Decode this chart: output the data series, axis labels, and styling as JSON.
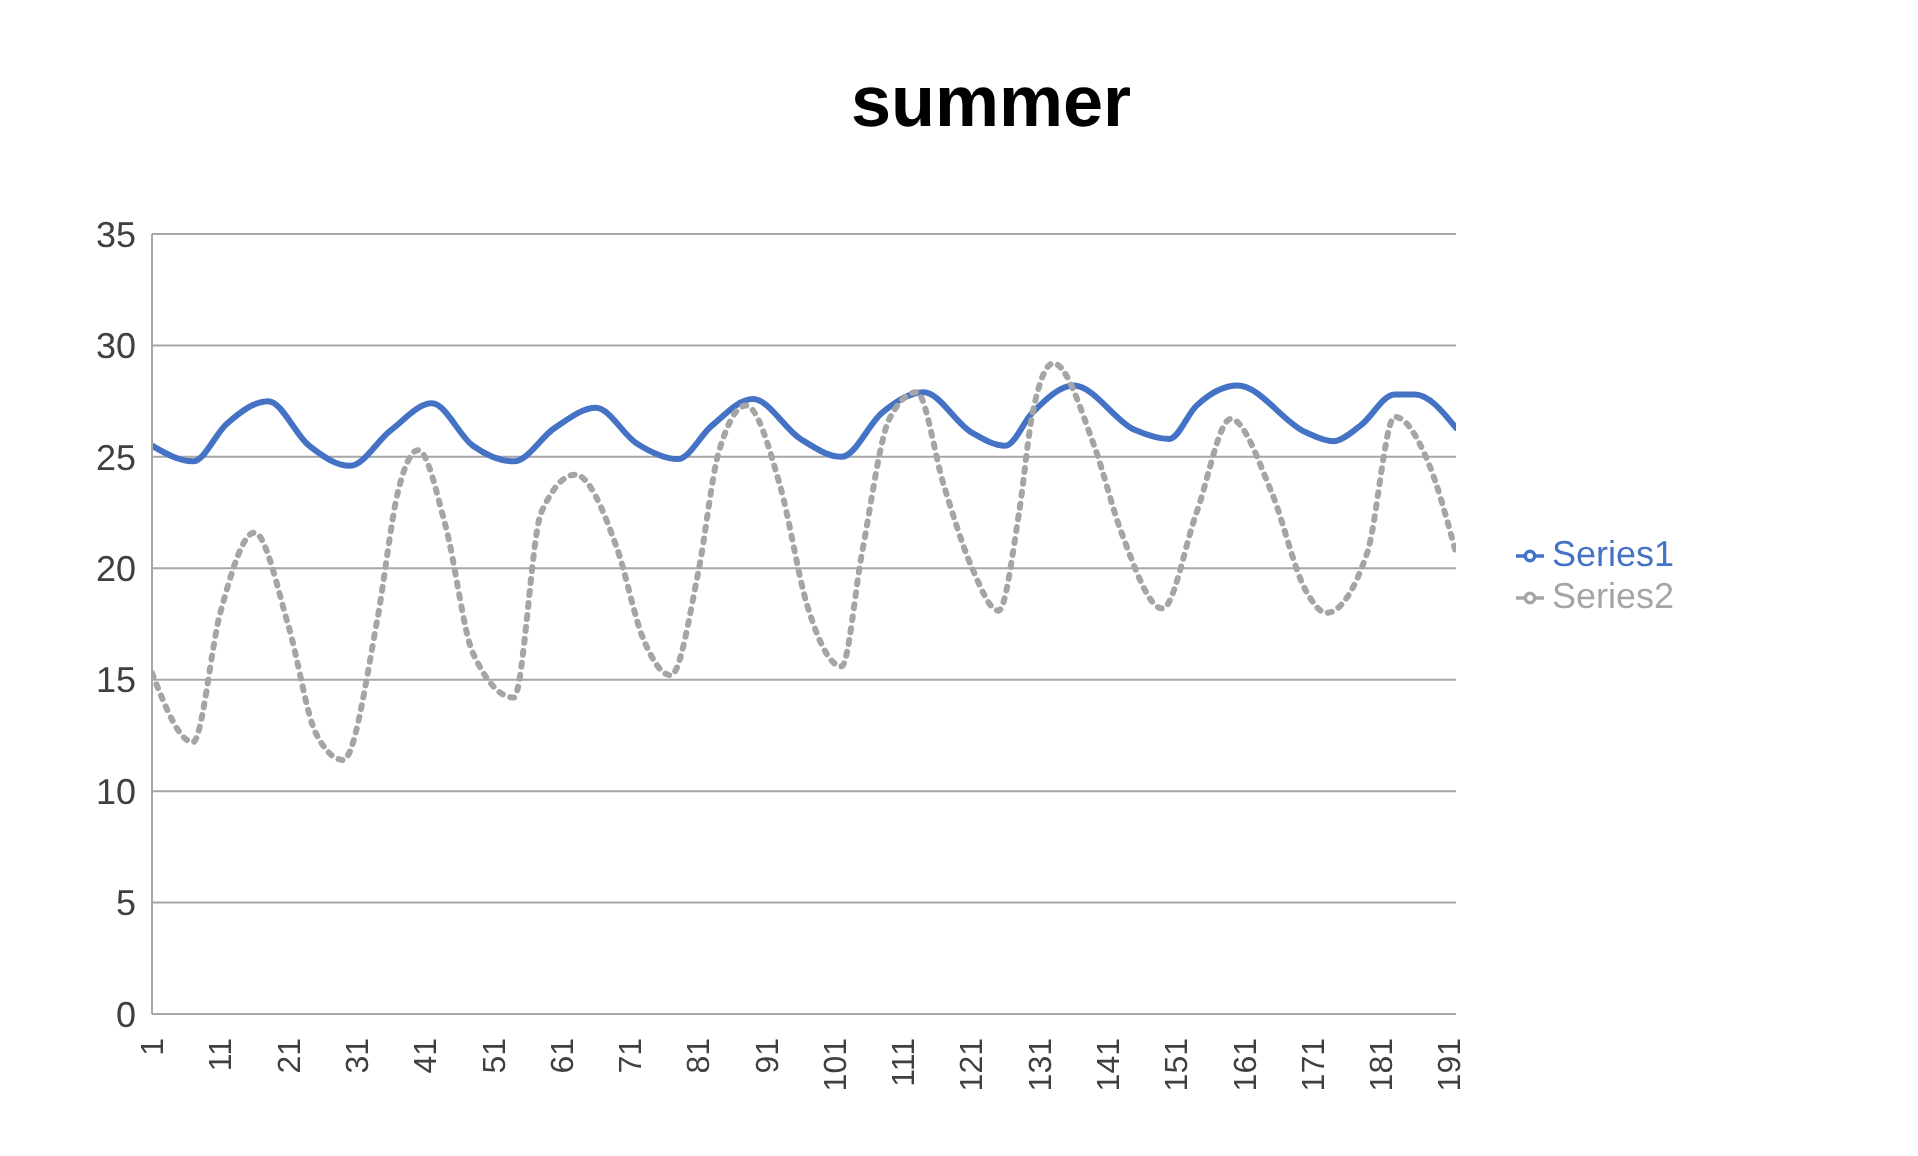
{
  "chart_data": {
    "type": "line",
    "title": "summer",
    "xlim": [
      1,
      192
    ],
    "xticks": [
      1,
      11,
      21,
      31,
      41,
      51,
      61,
      71,
      81,
      91,
      101,
      111,
      121,
      131,
      141,
      151,
      161,
      171,
      181,
      191
    ],
    "ylim": [
      0,
      35
    ],
    "yticks": [
      0,
      5,
      10,
      15,
      20,
      25,
      30,
      35
    ],
    "grid": "y",
    "legend": "right",
    "marker": "none",
    "series": [
      {
        "name": "Series1",
        "color": "#4472c4",
        "line_style": "solid",
        "x": [
          1,
          7,
          12,
          18,
          24,
          30,
          36,
          42,
          48,
          54,
          60,
          66,
          72,
          78,
          83,
          89,
          96,
          102,
          108,
          114,
          121,
          126,
          130,
          136,
          145,
          150,
          154,
          160,
          170,
          174,
          178,
          183,
          186,
          192
        ],
        "values": [
          25.5,
          24.8,
          26.5,
          27.5,
          25.5,
          24.6,
          26.2,
          27.4,
          25.5,
          24.8,
          26.3,
          27.2,
          25.6,
          24.9,
          26.4,
          27.6,
          25.8,
          25.0,
          27.0,
          27.9,
          26.1,
          25.5,
          27.0,
          28.2,
          26.2,
          25.8,
          27.3,
          28.2,
          26.1,
          25.7,
          26.4,
          27.8,
          27.8,
          26.3
        ]
      },
      {
        "name": "Series2",
        "color": "#a5a5a5",
        "line_style": "dotted",
        "x": [
          1,
          7,
          11,
          16,
          21,
          25,
          29,
          34,
          37,
          40,
          44,
          48,
          54,
          58,
          63,
          69,
          73,
          77,
          81,
          84,
          88,
          93,
          97,
          102,
          105,
          109,
          113,
          117,
          121,
          125,
          128,
          130,
          133,
          139,
          143,
          149,
          154,
          159,
          165,
          170,
          173,
          179,
          183,
          188,
          192
        ],
        "values": [
          15.3,
          12.2,
          18.0,
          21.6,
          17.4,
          12.6,
          11.4,
          17.7,
          23.4,
          25.3,
          21.9,
          16.2,
          14.2,
          22.5,
          24.2,
          21.0,
          16.8,
          15.2,
          19.8,
          25.2,
          27.3,
          23.7,
          18.3,
          15.6,
          20.7,
          26.7,
          27.9,
          23.7,
          20.1,
          18.1,
          22.5,
          27.0,
          29.2,
          25.5,
          21.6,
          18.2,
          22.5,
          26.7,
          23.4,
          19.0,
          18.0,
          20.7,
          26.8,
          24.7,
          20.7
        ]
      }
    ]
  }
}
